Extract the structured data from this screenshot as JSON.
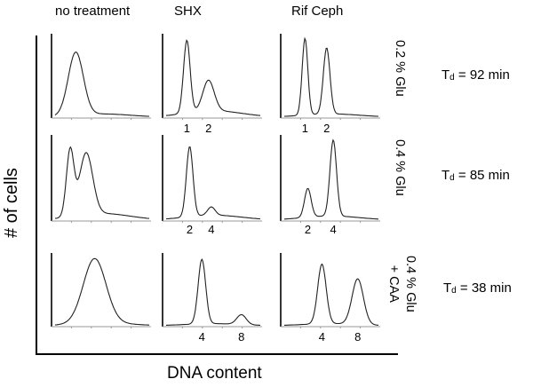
{
  "chart_data": {
    "type": "histogram-grid",
    "xlabel": "DNA content",
    "ylabel": "# of cells",
    "columns": [
      "no treatment",
      "SHX",
      "Rif Ceph"
    ],
    "rows": [
      {
        "condition_lines": [
          "0.2 % Glu"
        ],
        "td_prefix": "T",
        "td_sub": "d",
        "td_value": "= 92 min",
        "panels": [
          {
            "column": "no treatment",
            "peak_labels": [],
            "peaks": [
              {
                "x": 0.22,
                "h": 0.78,
                "w": 0.08
              }
            ],
            "tail": 0.04
          },
          {
            "column": "SHX",
            "peak_labels": [
              "1",
              "2"
            ],
            "peaks": [
              {
                "x": 0.22,
                "h": 0.9,
                "w": 0.035
              },
              {
                "x": 0.45,
                "h": 0.38,
                "w": 0.06
              }
            ],
            "tail": 0.08
          },
          {
            "column": "Rif Ceph",
            "peak_labels": [
              "1",
              "2"
            ],
            "peaks": [
              {
                "x": 0.22,
                "h": 0.95,
                "w": 0.03
              },
              {
                "x": 0.45,
                "h": 0.82,
                "w": 0.035
              }
            ],
            "tail": 0.04
          }
        ]
      },
      {
        "condition_lines": [
          "0.4 % Glu"
        ],
        "td_prefix": "T",
        "td_sub": "d",
        "td_value": "= 85 min",
        "panels": [
          {
            "column": "no treatment",
            "peak_labels": [],
            "peaks": [
              {
                "x": 0.16,
                "h": 0.8,
                "w": 0.04
              },
              {
                "x": 0.33,
                "h": 0.75,
                "w": 0.07
              }
            ],
            "tail": 0.08
          },
          {
            "column": "SHX",
            "peak_labels": [
              "2",
              "4"
            ],
            "peaks": [
              {
                "x": 0.25,
                "h": 0.85,
                "w": 0.035
              },
              {
                "x": 0.48,
                "h": 0.1,
                "w": 0.04
              }
            ],
            "tail": 0.06
          },
          {
            "column": "Rif Ceph",
            "peak_labels": [
              "2",
              "4"
            ],
            "peaks": [
              {
                "x": 0.25,
                "h": 0.35,
                "w": 0.035
              },
              {
                "x": 0.52,
                "h": 0.92,
                "w": 0.035
              }
            ],
            "tail": 0.05
          }
        ]
      },
      {
        "condition_lines": [
          "0.4 % Glu",
          "+ CAA"
        ],
        "td_prefix": "T",
        "td_sub": "d",
        "td_value": "= 38 min",
        "panels": [
          {
            "column": "no treatment",
            "peak_labels": [],
            "peaks": [
              {
                "x": 0.42,
                "h": 0.92,
                "w": 0.12
              }
            ],
            "tail": 0.04
          },
          {
            "column": "SHX",
            "peak_labels": [
              "4",
              "8"
            ],
            "peaks": [
              {
                "x": 0.38,
                "h": 0.92,
                "w": 0.04
              },
              {
                "x": 0.8,
                "h": 0.14,
                "w": 0.05
              }
            ],
            "tail": 0.03
          },
          {
            "column": "Rif Ceph",
            "peak_labels": [
              "4",
              "8"
            ],
            "peaks": [
              {
                "x": 0.4,
                "h": 0.85,
                "w": 0.045
              },
              {
                "x": 0.78,
                "h": 0.65,
                "w": 0.06
              }
            ],
            "tail": 0.03
          }
        ]
      }
    ]
  }
}
